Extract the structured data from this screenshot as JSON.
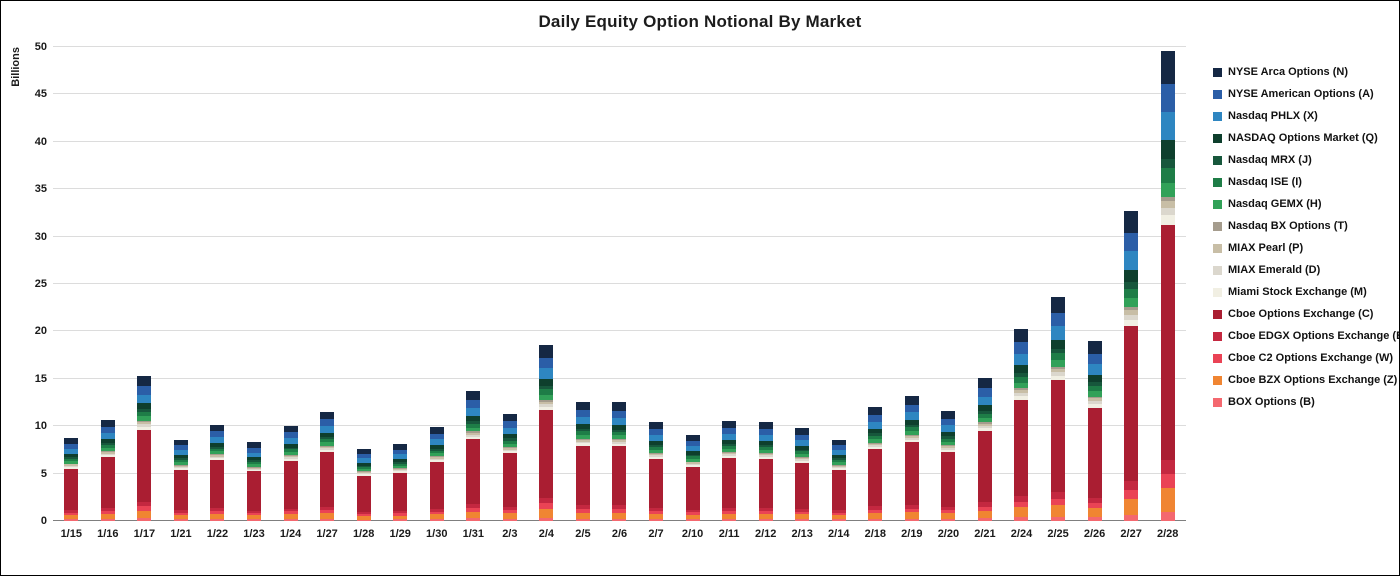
{
  "page": {
    "title": "Daily Equity Option Notional By Market",
    "ylabel": "Billions"
  },
  "chart_data": {
    "type": "bar",
    "stacked": true,
    "title": "Daily Equity Option Notional By Market",
    "xlabel": "",
    "ylabel": "Billions",
    "ylim": [
      0,
      50
    ],
    "ytick_step": 5,
    "grid": true,
    "legend_position": "right",
    "categories": [
      "1/15",
      "1/16",
      "1/17",
      "1/21",
      "1/22",
      "1/23",
      "1/24",
      "1/27",
      "1/28",
      "1/29",
      "1/30",
      "1/31",
      "2/3",
      "2/4",
      "2/5",
      "2/6",
      "2/7",
      "2/10",
      "2/11",
      "2/12",
      "2/13",
      "2/14",
      "2/18",
      "2/19",
      "2/20",
      "2/21",
      "2/24",
      "2/25",
      "2/26",
      "2/27",
      "2/28"
    ],
    "totals": [
      8.8,
      10.7,
      15.3,
      8.6,
      10.2,
      8.3,
      10.1,
      11.5,
      7.6,
      8.1,
      9.9,
      13.7,
      11.3,
      18.5,
      12.6,
      12.5,
      10.4,
      9.1,
      10.6,
      10.4,
      9.8,
      8.6,
      12.0,
      13.2,
      11.6,
      15.1,
      20.3,
      23.6,
      19.0,
      32.7,
      49.6
    ],
    "stack_order_note": "series listed bottom-to-top of stack; legend shows reverse order",
    "series": [
      {
        "name": "BOX Options (B)",
        "color": "#f4686f",
        "values": [
          0.18,
          0.21,
          0.31,
          0.17,
          0.2,
          0.17,
          0.2,
          0.23,
          0.15,
          0.16,
          0.2,
          0.27,
          0.23,
          0.37,
          0.25,
          0.25,
          0.21,
          0.18,
          0.21,
          0.21,
          0.2,
          0.17,
          0.24,
          0.26,
          0.23,
          0.3,
          0.41,
          0.47,
          0.38,
          0.65,
          0.99
        ]
      },
      {
        "name": "Cboe BZX Options Exchange (Z)",
        "color": "#f08532",
        "values": [
          0.44,
          0.54,
          0.77,
          0.43,
          0.51,
          0.42,
          0.51,
          0.58,
          0.38,
          0.41,
          0.5,
          0.69,
          0.57,
          0.93,
          0.63,
          0.63,
          0.52,
          0.46,
          0.53,
          0.52,
          0.49,
          0.43,
          0.6,
          0.66,
          0.58,
          0.76,
          1.02,
          1.18,
          0.95,
          1.64,
          2.48
        ]
      },
      {
        "name": "Cboe C2 Options Exchange (W)",
        "color": "#ea4355",
        "values": [
          0.26,
          0.32,
          0.46,
          0.26,
          0.31,
          0.25,
          0.3,
          0.35,
          0.23,
          0.24,
          0.3,
          0.41,
          0.34,
          0.56,
          0.38,
          0.38,
          0.31,
          0.27,
          0.32,
          0.31,
          0.29,
          0.26,
          0.36,
          0.4,
          0.35,
          0.45,
          0.61,
          0.71,
          0.57,
          0.98,
          1.49
        ]
      },
      {
        "name": "Cboe EDGX Options Exchange (E)",
        "color": "#c42840",
        "values": [
          0.26,
          0.32,
          0.46,
          0.26,
          0.31,
          0.25,
          0.3,
          0.35,
          0.23,
          0.24,
          0.3,
          0.41,
          0.34,
          0.56,
          0.38,
          0.38,
          0.31,
          0.27,
          0.32,
          0.31,
          0.29,
          0.26,
          0.36,
          0.4,
          0.35,
          0.45,
          0.61,
          0.71,
          0.57,
          0.98,
          1.49
        ]
      },
      {
        "name": "Cboe Options Exchange (C)",
        "color": "#aa1e32",
        "values": [
          4.4,
          5.35,
          7.65,
          4.3,
          5.1,
          4.15,
          5.05,
          5.75,
          3.8,
          4.05,
          4.95,
          6.85,
          5.65,
          9.25,
          6.3,
          6.25,
          5.2,
          4.55,
          5.3,
          5.2,
          4.9,
          4.3,
          6.0,
          6.6,
          5.8,
          7.55,
          10.15,
          11.8,
          9.5,
          16.35,
          24.8
        ]
      },
      {
        "name": "Miami Stock Exchange (M)",
        "color": "#f1efe3",
        "values": [
          0.18,
          0.21,
          0.31,
          0.17,
          0.2,
          0.17,
          0.2,
          0.23,
          0.15,
          0.16,
          0.2,
          0.27,
          0.23,
          0.37,
          0.25,
          0.25,
          0.21,
          0.18,
          0.21,
          0.21,
          0.2,
          0.17,
          0.24,
          0.26,
          0.23,
          0.3,
          0.41,
          0.47,
          0.38,
          0.65,
          0.99
        ]
      },
      {
        "name": "MIAX Emerald (D)",
        "color": "#dbd7cd",
        "values": [
          0.13,
          0.16,
          0.23,
          0.13,
          0.15,
          0.12,
          0.15,
          0.17,
          0.11,
          0.12,
          0.15,
          0.21,
          0.17,
          0.28,
          0.19,
          0.19,
          0.16,
          0.14,
          0.16,
          0.16,
          0.15,
          0.13,
          0.18,
          0.2,
          0.17,
          0.23,
          0.3,
          0.35,
          0.29,
          0.49,
          0.74
        ]
      },
      {
        "name": "MIAX Pearl (P)",
        "color": "#c8bea6",
        "values": [
          0.13,
          0.16,
          0.23,
          0.13,
          0.15,
          0.12,
          0.15,
          0.17,
          0.11,
          0.12,
          0.15,
          0.21,
          0.17,
          0.28,
          0.19,
          0.19,
          0.16,
          0.14,
          0.16,
          0.16,
          0.15,
          0.13,
          0.18,
          0.2,
          0.17,
          0.23,
          0.3,
          0.35,
          0.29,
          0.49,
          0.74
        ]
      },
      {
        "name": "Nasdaq BX Options (T)",
        "color": "#a59c8d",
        "values": [
          0.09,
          0.11,
          0.15,
          0.09,
          0.1,
          0.08,
          0.1,
          0.12,
          0.08,
          0.08,
          0.1,
          0.14,
          0.11,
          0.19,
          0.13,
          0.13,
          0.1,
          0.09,
          0.11,
          0.1,
          0.1,
          0.09,
          0.12,
          0.13,
          0.12,
          0.15,
          0.2,
          0.24,
          0.19,
          0.33,
          0.5
        ]
      },
      {
        "name": "Nasdaq GEMX (H)",
        "color": "#31a158",
        "values": [
          0.26,
          0.32,
          0.46,
          0.26,
          0.31,
          0.25,
          0.3,
          0.35,
          0.23,
          0.24,
          0.3,
          0.41,
          0.34,
          0.56,
          0.38,
          0.38,
          0.31,
          0.27,
          0.32,
          0.31,
          0.29,
          0.26,
          0.36,
          0.4,
          0.35,
          0.45,
          0.61,
          0.71,
          0.57,
          0.98,
          1.49
        ]
      },
      {
        "name": "Nasdaq ISE (I)",
        "color": "#1e7d47",
        "values": [
          0.26,
          0.32,
          0.46,
          0.26,
          0.31,
          0.25,
          0.3,
          0.35,
          0.23,
          0.24,
          0.3,
          0.41,
          0.34,
          0.56,
          0.38,
          0.38,
          0.31,
          0.27,
          0.32,
          0.31,
          0.29,
          0.26,
          0.36,
          0.4,
          0.35,
          0.45,
          0.61,
          0.71,
          0.57,
          0.98,
          1.49
        ]
      },
      {
        "name": "Nasdaq MRX (J)",
        "color": "#17573c",
        "values": [
          0.18,
          0.21,
          0.31,
          0.17,
          0.2,
          0.17,
          0.2,
          0.23,
          0.15,
          0.16,
          0.2,
          0.27,
          0.23,
          0.37,
          0.25,
          0.25,
          0.21,
          0.18,
          0.21,
          0.21,
          0.2,
          0.17,
          0.24,
          0.26,
          0.23,
          0.3,
          0.41,
          0.47,
          0.38,
          0.65,
          0.99
        ]
      },
      {
        "name": "NASDAQ Options Market (Q)",
        "color": "#0e3f2d",
        "values": [
          0.35,
          0.43,
          0.61,
          0.34,
          0.41,
          0.33,
          0.4,
          0.46,
          0.3,
          0.32,
          0.4,
          0.55,
          0.45,
          0.74,
          0.5,
          0.5,
          0.42,
          0.36,
          0.42,
          0.42,
          0.39,
          0.34,
          0.48,
          0.53,
          0.46,
          0.6,
          0.81,
          0.94,
          0.76,
          1.31,
          1.98
        ]
      },
      {
        "name": "Nasdaq PHLX (X)",
        "color": "#2e86c1",
        "values": [
          0.53,
          0.64,
          0.92,
          0.52,
          0.61,
          0.5,
          0.61,
          0.69,
          0.46,
          0.49,
          0.59,
          0.82,
          0.68,
          1.11,
          0.76,
          0.75,
          0.62,
          0.55,
          0.64,
          0.62,
          0.59,
          0.52,
          0.72,
          0.79,
          0.7,
          0.91,
          1.22,
          1.42,
          1.14,
          1.96,
          2.98
        ]
      },
      {
        "name": "NYSE American Options (A)",
        "color": "#2b5ea7",
        "values": [
          0.53,
          0.64,
          0.92,
          0.52,
          0.61,
          0.5,
          0.61,
          0.69,
          0.46,
          0.49,
          0.59,
          0.82,
          0.68,
          1.11,
          0.76,
          0.75,
          0.62,
          0.55,
          0.64,
          0.62,
          0.59,
          0.52,
          0.72,
          0.79,
          0.7,
          0.91,
          1.22,
          1.42,
          1.14,
          1.96,
          2.98
        ]
      },
      {
        "name": "NYSE Arca Options (N)",
        "color": "#152844",
        "values": [
          0.62,
          0.75,
          1.07,
          0.6,
          0.71,
          0.58,
          0.71,
          0.81,
          0.53,
          0.57,
          0.69,
          0.96,
          0.79,
          1.3,
          0.88,
          0.88,
          0.73,
          0.64,
          0.74,
          0.73,
          0.69,
          0.6,
          0.84,
          0.92,
          0.81,
          1.06,
          1.42,
          1.65,
          1.33,
          2.29,
          3.47
        ]
      }
    ]
  }
}
